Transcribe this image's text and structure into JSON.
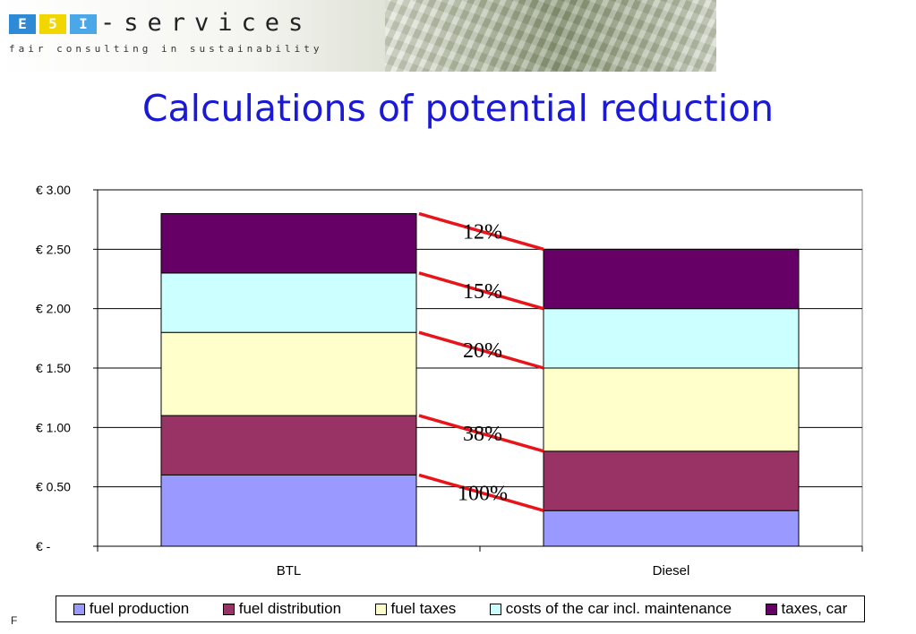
{
  "header": {
    "logo_letters": [
      "E",
      "5",
      "I"
    ],
    "logo_colors": [
      "#2f8ad6",
      "#f2d600",
      "#4aa7e8"
    ],
    "logo_name": "-services",
    "tagline": "fair consulting in sustainability"
  },
  "title": "Calculations of potential reduction",
  "footer_text": "F",
  "chart_data": {
    "type": "bar",
    "stacked": true,
    "categories": [
      "BTL",
      "Diesel"
    ],
    "series": [
      {
        "name": "fuel production",
        "color": "#9999ff",
        "values": [
          0.6,
          0.3
        ]
      },
      {
        "name": "fuel distribution",
        "color": "#993366",
        "values": [
          0.5,
          0.5
        ]
      },
      {
        "name": "fuel taxes",
        "color": "#ffffcc",
        "values": [
          0.7,
          0.7
        ]
      },
      {
        "name": "costs of the car incl. maintenance",
        "color": "#ccffff",
        "values": [
          0.5,
          0.5
        ]
      },
      {
        "name": "taxes, car",
        "color": "#660066",
        "values": [
          0.5,
          0.5
        ]
      }
    ],
    "ylim": [
      0,
      3.0
    ],
    "y_ticks": [
      0,
      0.5,
      1.0,
      1.5,
      2.0,
      2.5,
      3.0
    ],
    "y_tick_labels": [
      "€ -",
      "€ 0.50",
      "€ 1.00",
      "€ 1.50",
      "€ 2.00",
      "€ 2.50",
      "€ 3.00"
    ],
    "grid": true,
    "legend_position": "bottom",
    "annotations": [
      "12%",
      "15%",
      "20%",
      "38%",
      "100%"
    ],
    "connector_color": "#e8141a"
  }
}
